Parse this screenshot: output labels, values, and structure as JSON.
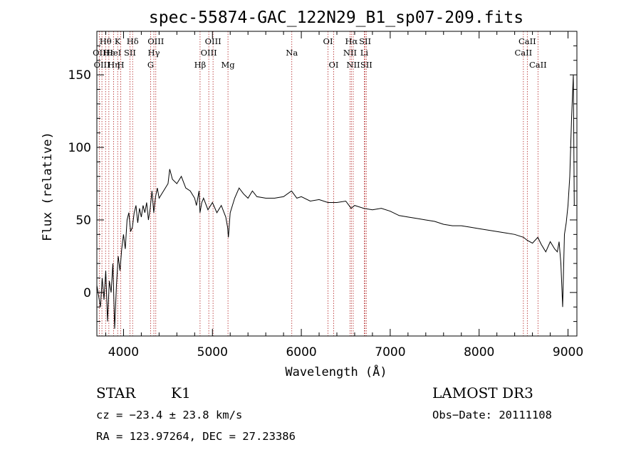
{
  "chart_data": {
    "type": "line",
    "title": "spec-55874-GAC_122N29_B1_sp07-209.fits",
    "xlabel": "Wavelength (Å)",
    "ylabel": "Flux (relative)",
    "xlim": [
      3700,
      9100
    ],
    "ylim": [
      -30,
      180
    ],
    "x_ticks": [
      4000,
      5000,
      6000,
      7000,
      8000,
      9000
    ],
    "y_ticks": [
      0,
      50,
      100,
      150
    ],
    "series": [
      {
        "name": "spectrum",
        "color": "#000000",
        "x": [
          3700,
          3740,
          3760,
          3780,
          3800,
          3820,
          3840,
          3860,
          3880,
          3900,
          3920,
          3940,
          3960,
          3980,
          4000,
          4020,
          4040,
          4060,
          4080,
          4100,
          4120,
          4140,
          4160,
          4180,
          4200,
          4220,
          4240,
          4260,
          4280,
          4300,
          4320,
          4340,
          4360,
          4380,
          4400,
          4450,
          4500,
          4520,
          4550,
          4600,
          4650,
          4700,
          4750,
          4800,
          4820,
          4850,
          4860,
          4880,
          4900,
          4950,
          5000,
          5050,
          5100,
          5150,
          5170,
          5180,
          5200,
          5250,
          5300,
          5350,
          5400,
          5450,
          5500,
          5600,
          5700,
          5800,
          5890,
          5950,
          6000,
          6100,
          6200,
          6300,
          6400,
          6500,
          6560,
          6600,
          6700,
          6800,
          6900,
          7000,
          7100,
          7200,
          7300,
          7400,
          7500,
          7600,
          7700,
          7800,
          7900,
          8000,
          8100,
          8200,
          8300,
          8400,
          8500,
          8540,
          8600,
          8660,
          8700,
          8750,
          8800,
          8850,
          8880,
          8900,
          8920,
          8940,
          8960,
          8980,
          9000,
          9020,
          9040,
          9060,
          9070
        ],
        "y": [
          5,
          -10,
          10,
          -5,
          15,
          -20,
          8,
          0,
          20,
          -25,
          5,
          25,
          15,
          30,
          40,
          30,
          50,
          55,
          42,
          45,
          55,
          60,
          48,
          58,
          52,
          60,
          55,
          62,
          50,
          58,
          70,
          55,
          66,
          72,
          65,
          70,
          75,
          85,
          78,
          75,
          80,
          72,
          70,
          65,
          60,
          70,
          55,
          62,
          65,
          57,
          62,
          55,
          60,
          52,
          45,
          38,
          55,
          65,
          72,
          68,
          65,
          70,
          66,
          65,
          65,
          66,
          70,
          65,
          66,
          63,
          64,
          62,
          62,
          63,
          58,
          60,
          58,
          57,
          58,
          56,
          53,
          52,
          51,
          50,
          49,
          47,
          46,
          46,
          45,
          44,
          43,
          42,
          41,
          40,
          38,
          36,
          34,
          38,
          33,
          28,
          35,
          30,
          28,
          35,
          20,
          -10,
          40,
          48,
          60,
          80,
          120,
          150,
          60
        ]
      }
    ],
    "line_markers": [
      {
        "label": "Hθ",
        "wavelength": 3798,
        "row": 1
      },
      {
        "label": "OII",
        "wavelength": 3727,
        "row": 2
      },
      {
        "label": "OIII",
        "wavelength": 3757,
        "row": 3
      },
      {
        "label": "Hε",
        "wavelength": 3835,
        "row": 2
      },
      {
        "label": "Hη",
        "wavelength": 3889,
        "row": 3
      },
      {
        "label": "HeI",
        "wavelength": 3889,
        "row": 2
      },
      {
        "label": "K",
        "wavelength": 3934,
        "row": 1
      },
      {
        "label": "H",
        "wavelength": 3969,
        "row": 3
      },
      {
        "label": "SII",
        "wavelength": 4072,
        "row": 2
      },
      {
        "label": "Hδ",
        "wavelength": 4102,
        "row": 1
      },
      {
        "label": "OIII",
        "wavelength": 4363,
        "row": 1
      },
      {
        "label": "Hγ",
        "wavelength": 4341,
        "row": 2
      },
      {
        "label": "G",
        "wavelength": 4305,
        "row": 3
      },
      {
        "label": "Hβ",
        "wavelength": 4861,
        "row": 3
      },
      {
        "label": "OIII",
        "wavelength": 5007,
        "row": 1
      },
      {
        "label": "OIII",
        "wavelength": 4959,
        "row": 2
      },
      {
        "label": "Mg",
        "wavelength": 5175,
        "row": 3
      },
      {
        "label": "Na",
        "wavelength": 5893,
        "row": 2
      },
      {
        "label": "OI",
        "wavelength": 6300,
        "row": 1
      },
      {
        "label": "OI",
        "wavelength": 6364,
        "row": 3
      },
      {
        "label": "Hα",
        "wavelength": 6563,
        "row": 1
      },
      {
        "label": "NII",
        "wavelength": 6548,
        "row": 2
      },
      {
        "label": "NII",
        "wavelength": 6584,
        "row": 3
      },
      {
        "label": "SII",
        "wavelength": 6717,
        "row": 1
      },
      {
        "label": "Li",
        "wavelength": 6708,
        "row": 2
      },
      {
        "label": "SII",
        "wavelength": 6731,
        "row": 3
      },
      {
        "label": "CaII",
        "wavelength": 8542,
        "row": 1
      },
      {
        "label": "CaII",
        "wavelength": 8498,
        "row": 2
      },
      {
        "label": "CaII",
        "wavelength": 8662,
        "row": 3
      }
    ],
    "marker_color": "#b22222"
  },
  "info": {
    "object_class": "STAR",
    "subclass": "K1",
    "survey": "LAMOST DR3",
    "redshift": "cz = −23.4 ± 23.8 km/s",
    "obs_date": "Obs−Date: 20111108",
    "coords": "RA = 123.97264, DEC =  27.23386"
  }
}
